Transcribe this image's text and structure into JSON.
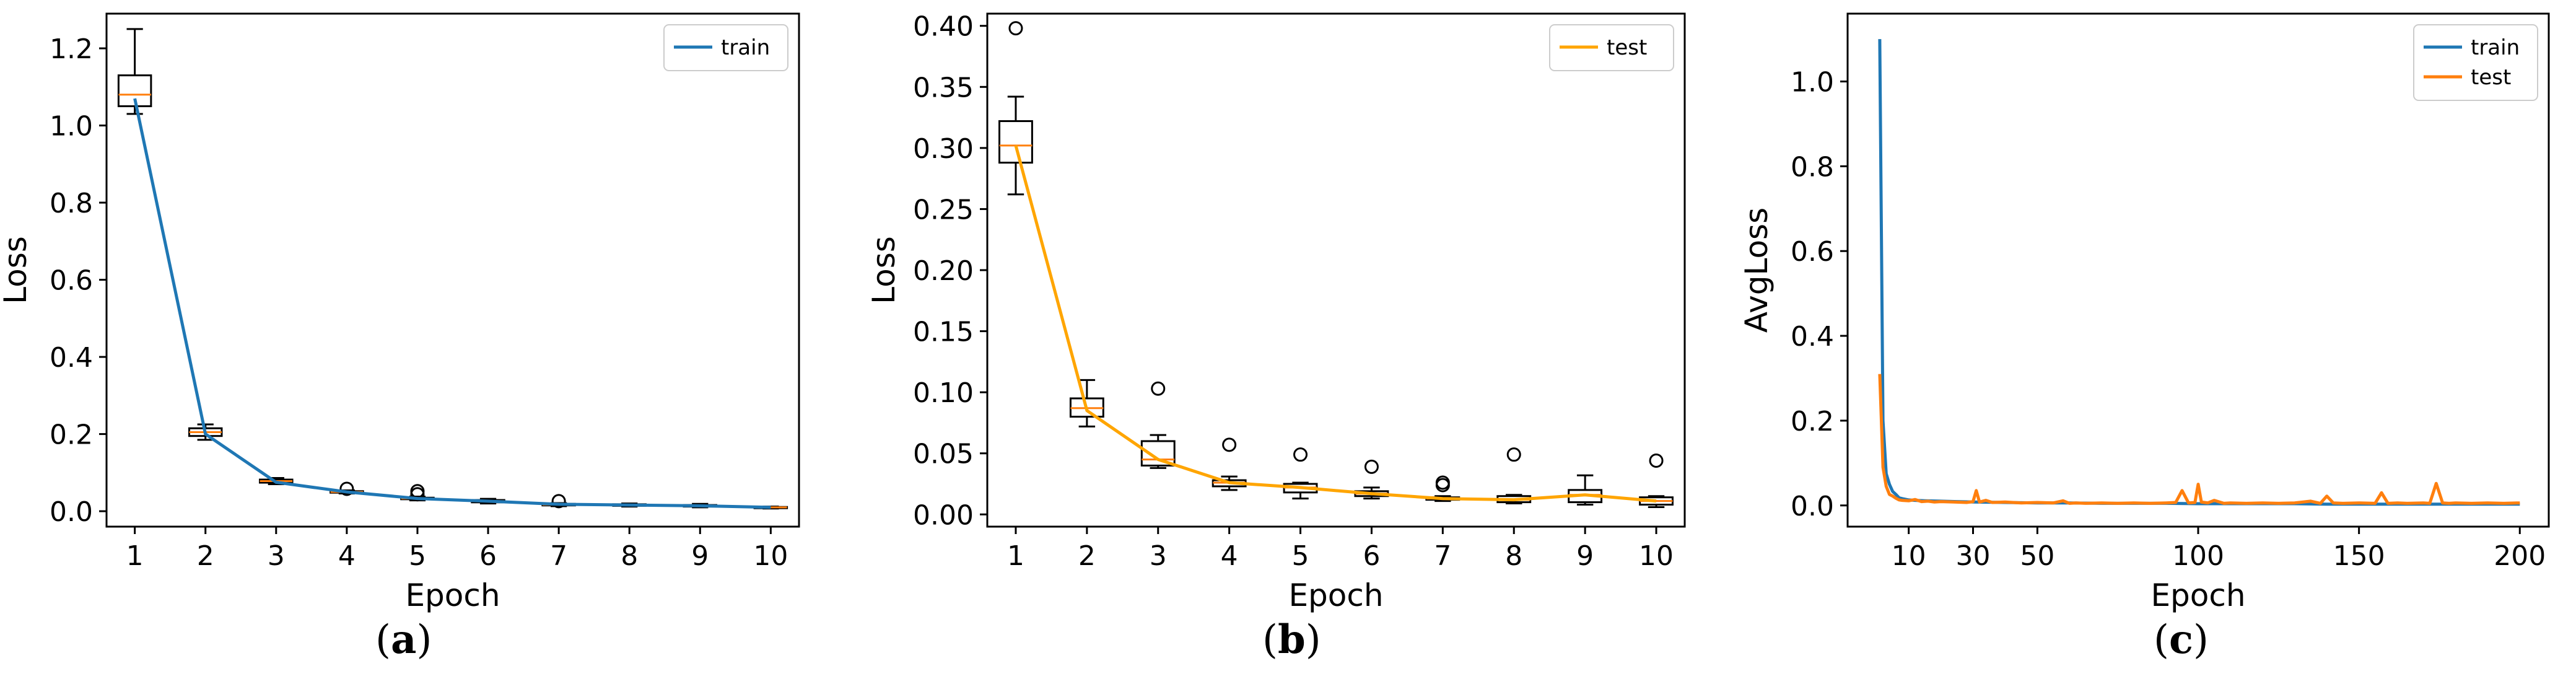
{
  "colors": {
    "train": "#1f77b4",
    "test": "#ff7f0e",
    "test_b": "#ffa500",
    "axis": "#000000"
  },
  "captions": [
    {
      "open": "(",
      "letter": "a",
      "close": ")"
    },
    {
      "open": "(",
      "letter": "b",
      "close": ")"
    },
    {
      "open": "(",
      "letter": "c",
      "close": ")"
    }
  ],
  "chart_data": [
    {
      "type": "box",
      "title": "",
      "xlabel": "Epoch",
      "ylabel": "Loss",
      "xlim": [
        0.6,
        10.4
      ],
      "ylim": [
        -0.04,
        1.29
      ],
      "xticks": [
        1,
        2,
        3,
        4,
        5,
        6,
        7,
        8,
        9,
        10
      ],
      "yticks": [
        0.0,
        0.2,
        0.4,
        0.6,
        0.8,
        1.0,
        1.2
      ],
      "ytick_labels": [
        "0.0",
        "0.2",
        "0.4",
        "0.6",
        "0.8",
        "1.0",
        "1.2"
      ],
      "legend": {
        "position": "top-right",
        "entries": [
          "train"
        ]
      },
      "line": {
        "name": "train",
        "color": "#1f77b4",
        "x": [
          1,
          2,
          3,
          4,
          5,
          6,
          7,
          8,
          9,
          10
        ],
        "y": [
          1.07,
          0.2,
          0.075,
          0.05,
          0.033,
          0.026,
          0.018,
          0.016,
          0.014,
          0.01
        ]
      },
      "boxes": [
        {
          "x": 1,
          "whislo": 1.03,
          "q1": 1.05,
          "med": 1.08,
          "q3": 1.13,
          "whishi": 1.25,
          "fliers": []
        },
        {
          "x": 2,
          "whislo": 0.185,
          "q1": 0.195,
          "med": 0.205,
          "q3": 0.215,
          "whishi": 0.225,
          "fliers": []
        },
        {
          "x": 3,
          "whislo": 0.07,
          "q1": 0.074,
          "med": 0.078,
          "q3": 0.082,
          "whishi": 0.086,
          "fliers": []
        },
        {
          "x": 4,
          "whislo": 0.046,
          "q1": 0.048,
          "med": 0.05,
          "q3": 0.052,
          "whishi": 0.054,
          "fliers": [
            0.058
          ]
        },
        {
          "x": 5,
          "whislo": 0.028,
          "q1": 0.031,
          "med": 0.033,
          "q3": 0.035,
          "whishi": 0.038,
          "fliers": [
            0.044,
            0.052
          ]
        },
        {
          "x": 6,
          "whislo": 0.02,
          "q1": 0.023,
          "med": 0.026,
          "q3": 0.029,
          "whishi": 0.032,
          "fliers": []
        },
        {
          "x": 7,
          "whislo": 0.013,
          "q1": 0.015,
          "med": 0.017,
          "q3": 0.019,
          "whishi": 0.021,
          "fliers": [
            0.026
          ]
        },
        {
          "x": 8,
          "whislo": 0.012,
          "q1": 0.014,
          "med": 0.016,
          "q3": 0.018,
          "whishi": 0.02,
          "fliers": []
        },
        {
          "x": 9,
          "whislo": 0.01,
          "q1": 0.012,
          "med": 0.014,
          "q3": 0.016,
          "whishi": 0.019,
          "fliers": []
        },
        {
          "x": 10,
          "whislo": 0.007,
          "q1": 0.008,
          "med": 0.01,
          "q3": 0.011,
          "whishi": 0.012,
          "fliers": []
        }
      ]
    },
    {
      "type": "box",
      "title": "",
      "xlabel": "Epoch",
      "ylabel": "Loss",
      "xlim": [
        0.6,
        10.4
      ],
      "ylim": [
        -0.01,
        0.41
      ],
      "xticks": [
        1,
        2,
        3,
        4,
        5,
        6,
        7,
        8,
        9,
        10
      ],
      "yticks": [
        0.0,
        0.05,
        0.1,
        0.15,
        0.2,
        0.25,
        0.3,
        0.35,
        0.4
      ],
      "ytick_labels": [
        "0.00",
        "0.05",
        "0.10",
        "0.15",
        "0.20",
        "0.25",
        "0.30",
        "0.35",
        "0.40"
      ],
      "legend": {
        "position": "top-right",
        "entries": [
          "test"
        ]
      },
      "line": {
        "name": "test",
        "color": "#ffa500",
        "x": [
          1,
          2,
          3,
          4,
          5,
          6,
          7,
          8,
          9,
          10
        ],
        "y": [
          0.302,
          0.085,
          0.045,
          0.026,
          0.022,
          0.017,
          0.013,
          0.012,
          0.016,
          0.011
        ]
      },
      "boxes": [
        {
          "x": 1,
          "whislo": 0.262,
          "q1": 0.288,
          "med": 0.302,
          "q3": 0.322,
          "whishi": 0.342,
          "fliers": [
            0.398
          ]
        },
        {
          "x": 2,
          "whislo": 0.072,
          "q1": 0.08,
          "med": 0.087,
          "q3": 0.095,
          "whishi": 0.11,
          "fliers": []
        },
        {
          "x": 3,
          "whislo": 0.038,
          "q1": 0.04,
          "med": 0.045,
          "q3": 0.06,
          "whishi": 0.065,
          "fliers": [
            0.103
          ]
        },
        {
          "x": 4,
          "whislo": 0.02,
          "q1": 0.023,
          "med": 0.026,
          "q3": 0.028,
          "whishi": 0.031,
          "fliers": [
            0.057
          ]
        },
        {
          "x": 5,
          "whislo": 0.013,
          "q1": 0.018,
          "med": 0.022,
          "q3": 0.025,
          "whishi": 0.026,
          "fliers": [
            0.049
          ]
        },
        {
          "x": 6,
          "whislo": 0.013,
          "q1": 0.015,
          "med": 0.017,
          "q3": 0.019,
          "whishi": 0.022,
          "fliers": [
            0.039
          ]
        },
        {
          "x": 7,
          "whislo": 0.011,
          "q1": 0.012,
          "med": 0.013,
          "q3": 0.014,
          "whishi": 0.015,
          "fliers": [
            0.024,
            0.026
          ]
        },
        {
          "x": 8,
          "whislo": 0.009,
          "q1": 0.01,
          "med": 0.012,
          "q3": 0.015,
          "whishi": 0.016,
          "fliers": [
            0.049
          ]
        },
        {
          "x": 9,
          "whislo": 0.008,
          "q1": 0.01,
          "med": 0.016,
          "q3": 0.02,
          "whishi": 0.032,
          "fliers": []
        },
        {
          "x": 10,
          "whislo": 0.006,
          "q1": 0.008,
          "med": 0.011,
          "q3": 0.014,
          "whishi": 0.015,
          "fliers": [
            0.044
          ]
        }
      ]
    },
    {
      "type": "line",
      "title": "",
      "xlabel": "Epoch",
      "ylabel": "AvgLoss",
      "xlim": [
        -9,
        209
      ],
      "ylim": [
        -0.05,
        1.16
      ],
      "xticks": [
        10,
        30,
        50,
        100,
        150,
        200
      ],
      "ytick_labels": [
        "0.0",
        "0.2",
        "0.4",
        "0.6",
        "0.8",
        "1.0"
      ],
      "yticks": [
        0.0,
        0.2,
        0.4,
        0.6,
        0.8,
        1.0
      ],
      "legend": {
        "position": "top-right",
        "entries": [
          "train",
          "test"
        ]
      },
      "series": [
        {
          "name": "train",
          "color": "#1f77b4",
          "x": [
            1,
            2,
            3,
            4,
            5,
            6,
            7,
            8,
            10,
            12,
            15,
            20,
            25,
            30,
            40,
            50,
            60,
            70,
            80,
            90,
            100,
            110,
            120,
            130,
            140,
            150,
            160,
            170,
            180,
            190,
            200
          ],
          "y": [
            1.1,
            0.2,
            0.075,
            0.05,
            0.033,
            0.026,
            0.018,
            0.016,
            0.013,
            0.012,
            0.011,
            0.01,
            0.009,
            0.008,
            0.007,
            0.006,
            0.006,
            0.005,
            0.005,
            0.005,
            0.004,
            0.004,
            0.004,
            0.004,
            0.003,
            0.003,
            0.003,
            0.003,
            0.003,
            0.003,
            0.003
          ]
        },
        {
          "name": "test",
          "color": "#ff7f0e",
          "x": [
            1,
            2,
            3,
            4,
            5,
            6,
            7,
            8,
            10,
            12,
            14,
            16,
            18,
            20,
            24,
            28,
            30,
            31,
            32,
            34,
            36,
            40,
            45,
            50,
            55,
            58,
            60,
            62,
            65,
            70,
            75,
            80,
            85,
            90,
            93,
            95,
            97,
            99,
            100,
            101,
            103,
            105,
            108,
            110,
            115,
            120,
            125,
            130,
            135,
            138,
            140,
            142,
            145,
            150,
            155,
            157,
            159,
            162,
            165,
            170,
            172,
            174,
            176,
            178,
            180,
            185,
            190,
            195,
            200
          ],
          "y": [
            0.31,
            0.09,
            0.045,
            0.026,
            0.022,
            0.017,
            0.013,
            0.012,
            0.011,
            0.014,
            0.009,
            0.01,
            0.008,
            0.009,
            0.008,
            0.007,
            0.009,
            0.035,
            0.008,
            0.012,
            0.007,
            0.008,
            0.006,
            0.007,
            0.006,
            0.011,
            0.005,
            0.006,
            0.005,
            0.006,
            0.005,
            0.006,
            0.005,
            0.006,
            0.007,
            0.035,
            0.006,
            0.007,
            0.05,
            0.008,
            0.006,
            0.012,
            0.005,
            0.006,
            0.005,
            0.006,
            0.005,
            0.006,
            0.01,
            0.005,
            0.022,
            0.006,
            0.005,
            0.006,
            0.005,
            0.03,
            0.005,
            0.006,
            0.005,
            0.006,
            0.005,
            0.052,
            0.006,
            0.005,
            0.006,
            0.005,
            0.006,
            0.005,
            0.006
          ]
        }
      ]
    }
  ]
}
